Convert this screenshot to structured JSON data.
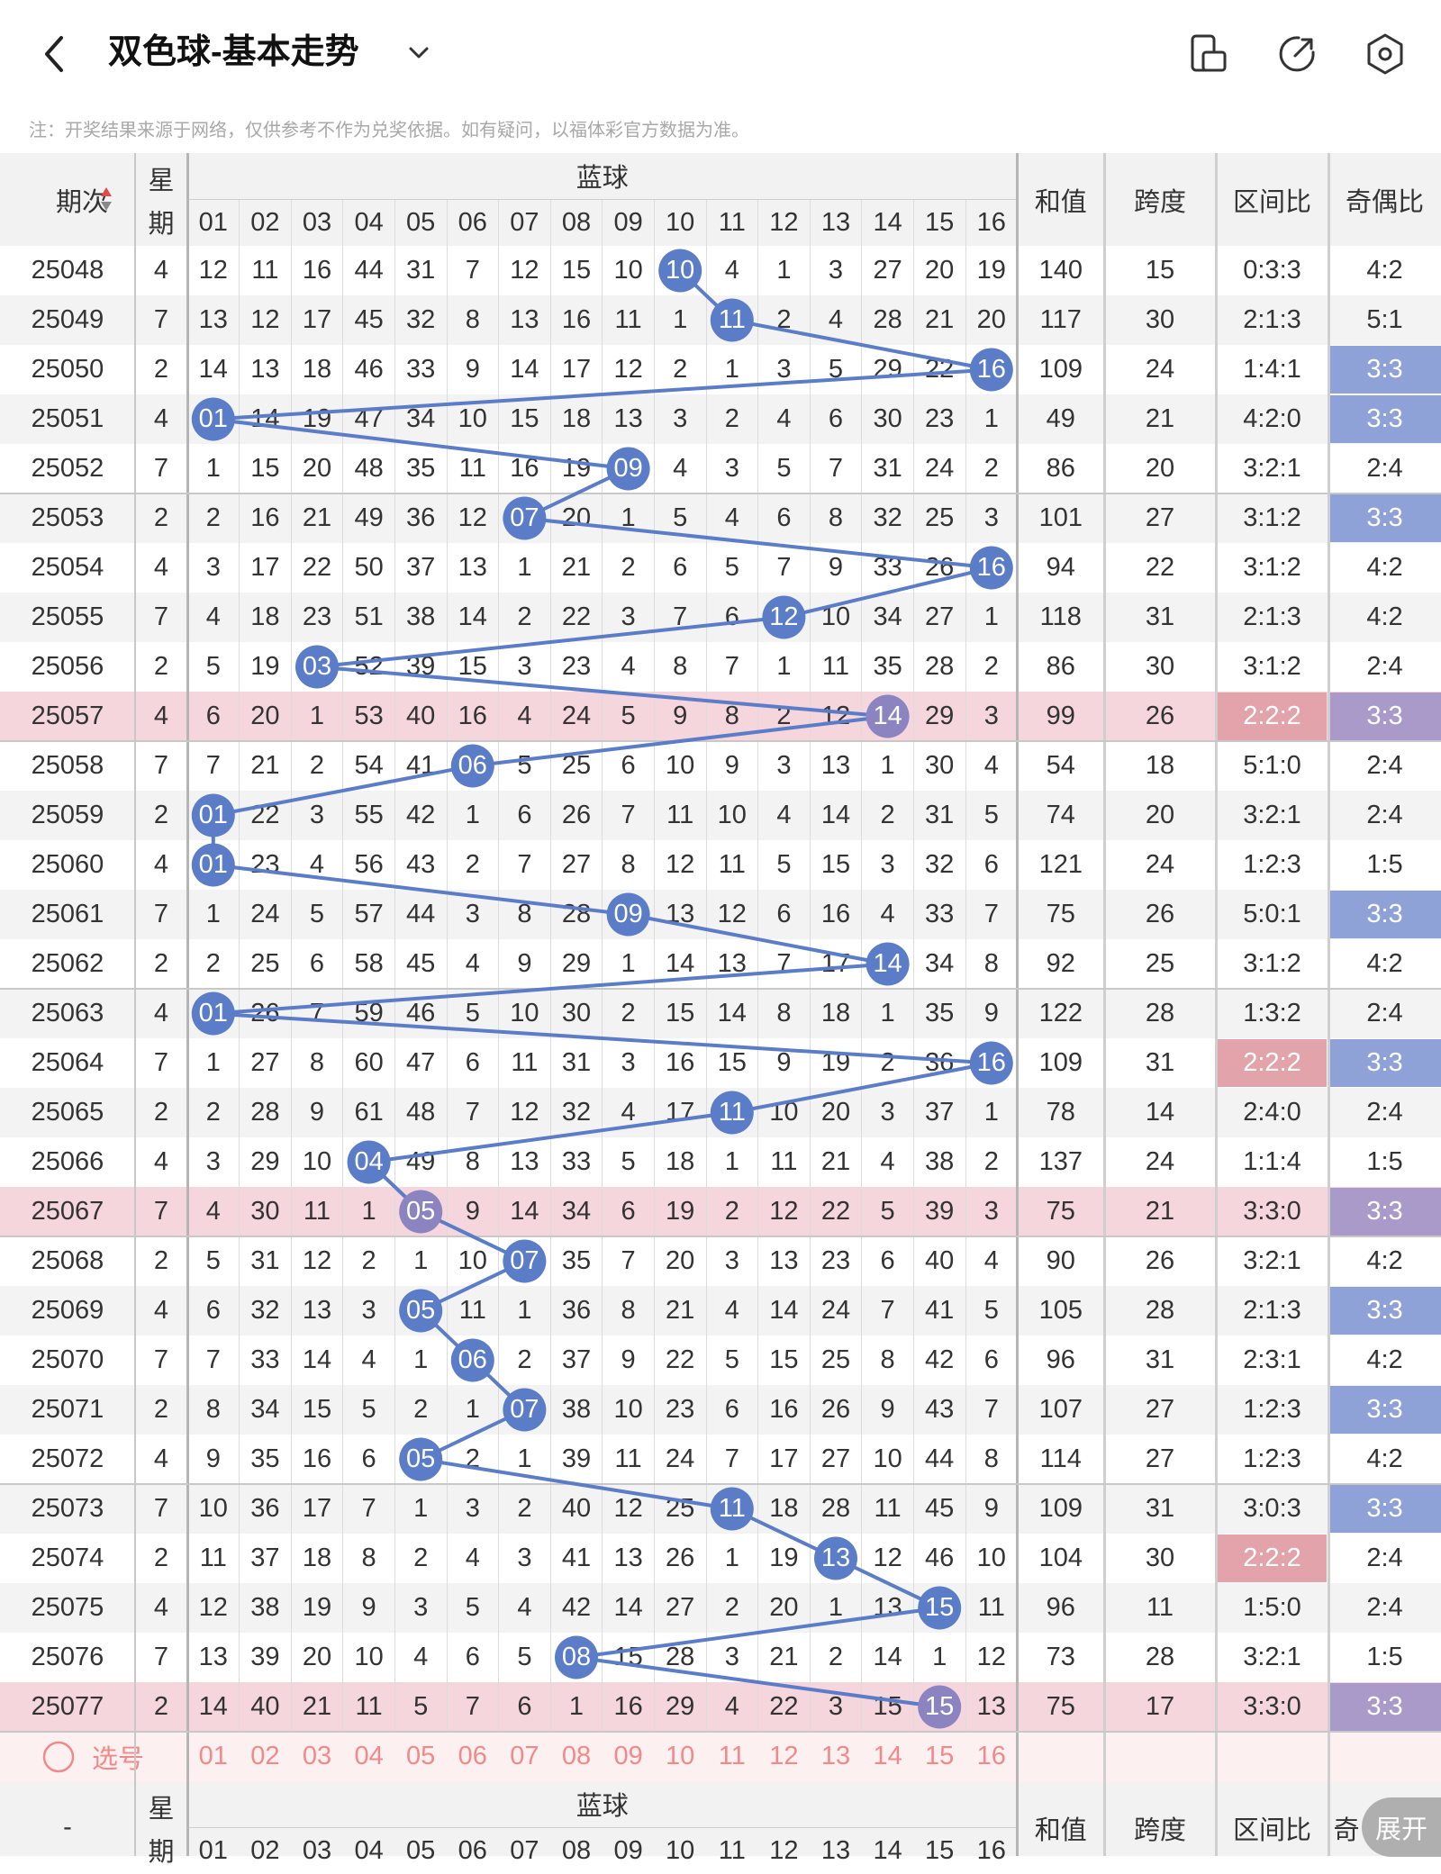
{
  "header": {
    "title": "双色球-基本走势",
    "back_icon": "chevron-left-icon",
    "dropdown_icon": "chevron-down-icon",
    "icons": [
      "phone-rotate-icon",
      "share-icon",
      "settings-hex-icon"
    ]
  },
  "note": "注：开奖结果来源于网络，仅供参考不作为兑奖依据。如有疑问，以福体彩官方数据为准。",
  "table": {
    "headers": {
      "period": "期次",
      "sort_icon": "sort-updown-icon",
      "weekday": "星期",
      "blue_group": "蓝球",
      "sum": "和值",
      "span": "跨度",
      "zone_ratio": "区间比",
      "odd_even": "奇偶比"
    },
    "blue_columns": [
      "01",
      "02",
      "03",
      "04",
      "05",
      "06",
      "07",
      "08",
      "09",
      "10",
      "11",
      "12",
      "13",
      "14",
      "15",
      "16"
    ],
    "rows": [
      {
        "period": "25048",
        "weekday": "4",
        "blue_hit": 10,
        "blue_cells": [
          12,
          11,
          16,
          44,
          31,
          7,
          12,
          15,
          10,
          "10",
          4,
          1,
          3,
          27,
          20,
          19
        ],
        "sum": "140",
        "span": "15",
        "zone": "0:3:3",
        "oe": "4:2"
      },
      {
        "period": "25049",
        "weekday": "7",
        "blue_hit": 11,
        "blue_cells": [
          13,
          12,
          17,
          45,
          32,
          8,
          13,
          16,
          11,
          1,
          "11",
          2,
          4,
          28,
          21,
          20
        ],
        "sum": "117",
        "span": "30",
        "zone": "2:1:3",
        "oe": "5:1"
      },
      {
        "period": "25050",
        "weekday": "2",
        "blue_hit": 16,
        "blue_cells": [
          14,
          13,
          18,
          46,
          33,
          9,
          14,
          17,
          12,
          2,
          1,
          3,
          5,
          29,
          22,
          "16"
        ],
        "sum": "109",
        "span": "24",
        "zone": "1:4:1",
        "oe": "3:3"
      },
      {
        "period": "25051",
        "weekday": "4",
        "blue_hit": 1,
        "blue_cells": [
          "01",
          14,
          19,
          47,
          34,
          10,
          15,
          18,
          13,
          3,
          2,
          4,
          6,
          30,
          23,
          1
        ],
        "sum": "49",
        "span": "21",
        "zone": "4:2:0",
        "oe": "3:3"
      },
      {
        "period": "25052",
        "weekday": "7",
        "blue_hit": 9,
        "blue_cells": [
          1,
          15,
          20,
          48,
          35,
          11,
          16,
          19,
          "09",
          4,
          3,
          5,
          7,
          31,
          24,
          2
        ],
        "sum": "86",
        "span": "20",
        "zone": "3:2:1",
        "oe": "2:4"
      },
      {
        "period": "25053",
        "weekday": "2",
        "blue_hit": 7,
        "blue_cells": [
          2,
          16,
          21,
          49,
          36,
          12,
          "07",
          20,
          1,
          5,
          4,
          6,
          8,
          32,
          25,
          3
        ],
        "sum": "101",
        "span": "27",
        "zone": "3:1:2",
        "oe": "3:3"
      },
      {
        "period": "25054",
        "weekday": "4",
        "blue_hit": 16,
        "blue_cells": [
          3,
          17,
          22,
          50,
          37,
          13,
          1,
          21,
          2,
          6,
          5,
          7,
          9,
          33,
          26,
          "16"
        ],
        "sum": "94",
        "span": "22",
        "zone": "3:1:2",
        "oe": "4:2"
      },
      {
        "period": "25055",
        "weekday": "7",
        "blue_hit": 12,
        "blue_cells": [
          4,
          18,
          23,
          51,
          38,
          14,
          2,
          22,
          3,
          7,
          6,
          "12",
          10,
          34,
          27,
          1
        ],
        "sum": "118",
        "span": "31",
        "zone": "2:1:3",
        "oe": "4:2"
      },
      {
        "period": "25056",
        "weekday": "2",
        "blue_hit": 3,
        "blue_cells": [
          5,
          19,
          "03",
          52,
          39,
          15,
          3,
          23,
          4,
          8,
          7,
          1,
          11,
          35,
          28,
          2
        ],
        "sum": "86",
        "span": "30",
        "zone": "3:1:2",
        "oe": "2:4"
      },
      {
        "period": "25057",
        "weekday": "4",
        "blue_hit": 14,
        "blue_cells": [
          6,
          20,
          1,
          53,
          40,
          16,
          4,
          24,
          5,
          9,
          8,
          2,
          12,
          "14",
          29,
          3
        ],
        "sum": "99",
        "span": "26",
        "zone": "2:2:2",
        "oe": "3:3"
      },
      {
        "period": "25058",
        "weekday": "7",
        "blue_hit": 6,
        "blue_cells": [
          7,
          21,
          2,
          54,
          41,
          "06",
          5,
          25,
          6,
          10,
          9,
          3,
          13,
          1,
          30,
          4
        ],
        "sum": "54",
        "span": "18",
        "zone": "5:1:0",
        "oe": "2:4"
      },
      {
        "period": "25059",
        "weekday": "2",
        "blue_hit": 1,
        "blue_cells": [
          "01",
          22,
          3,
          55,
          42,
          1,
          6,
          26,
          7,
          11,
          10,
          4,
          14,
          2,
          31,
          5
        ],
        "sum": "74",
        "span": "20",
        "zone": "3:2:1",
        "oe": "2:4"
      },
      {
        "period": "25060",
        "weekday": "4",
        "blue_hit": 1,
        "blue_cells": [
          "01",
          23,
          4,
          56,
          43,
          2,
          7,
          27,
          8,
          12,
          11,
          5,
          15,
          3,
          32,
          6
        ],
        "sum": "121",
        "span": "24",
        "zone": "1:2:3",
        "oe": "1:5"
      },
      {
        "period": "25061",
        "weekday": "7",
        "blue_hit": 9,
        "blue_cells": [
          1,
          24,
          5,
          57,
          44,
          3,
          8,
          28,
          "09",
          13,
          12,
          6,
          16,
          4,
          33,
          7
        ],
        "sum": "75",
        "span": "26",
        "zone": "5:0:1",
        "oe": "3:3"
      },
      {
        "period": "25062",
        "weekday": "2",
        "blue_hit": 14,
        "blue_cells": [
          2,
          25,
          6,
          58,
          45,
          4,
          9,
          29,
          1,
          14,
          13,
          7,
          17,
          "14",
          34,
          8
        ],
        "sum": "92",
        "span": "25",
        "zone": "3:1:2",
        "oe": "4:2"
      },
      {
        "period": "25063",
        "weekday": "4",
        "blue_hit": 1,
        "blue_cells": [
          "01",
          26,
          7,
          59,
          46,
          5,
          10,
          30,
          2,
          15,
          14,
          8,
          18,
          1,
          35,
          9
        ],
        "sum": "122",
        "span": "28",
        "zone": "1:3:2",
        "oe": "2:4"
      },
      {
        "period": "25064",
        "weekday": "7",
        "blue_hit": 16,
        "blue_cells": [
          1,
          27,
          8,
          60,
          47,
          6,
          11,
          31,
          3,
          16,
          15,
          9,
          19,
          2,
          36,
          "16"
        ],
        "sum": "109",
        "span": "31",
        "zone": "2:2:2",
        "oe": "3:3"
      },
      {
        "period": "25065",
        "weekday": "2",
        "blue_hit": 11,
        "blue_cells": [
          2,
          28,
          9,
          61,
          48,
          7,
          12,
          32,
          4,
          17,
          "11",
          10,
          20,
          3,
          37,
          1
        ],
        "sum": "78",
        "span": "14",
        "zone": "2:4:0",
        "oe": "2:4"
      },
      {
        "period": "25066",
        "weekday": "4",
        "blue_hit": 4,
        "blue_cells": [
          3,
          29,
          10,
          "04",
          49,
          8,
          13,
          33,
          5,
          18,
          1,
          11,
          21,
          4,
          38,
          2
        ],
        "sum": "137",
        "span": "24",
        "zone": "1:1:4",
        "oe": "1:5"
      },
      {
        "period": "25067",
        "weekday": "7",
        "blue_hit": 5,
        "blue_cells": [
          4,
          30,
          11,
          1,
          "05",
          9,
          14,
          34,
          6,
          19,
          2,
          12,
          22,
          5,
          39,
          3
        ],
        "sum": "75",
        "span": "21",
        "zone": "3:3:0",
        "oe": "3:3"
      },
      {
        "period": "25068",
        "weekday": "2",
        "blue_hit": 7,
        "blue_cells": [
          5,
          31,
          12,
          2,
          1,
          10,
          "07",
          35,
          7,
          20,
          3,
          13,
          23,
          6,
          40,
          4
        ],
        "sum": "90",
        "span": "26",
        "zone": "3:2:1",
        "oe": "4:2"
      },
      {
        "period": "25069",
        "weekday": "4",
        "blue_hit": 5,
        "blue_cells": [
          6,
          32,
          13,
          3,
          "05",
          11,
          1,
          36,
          8,
          21,
          4,
          14,
          24,
          7,
          41,
          5
        ],
        "sum": "105",
        "span": "28",
        "zone": "2:1:3",
        "oe": "3:3"
      },
      {
        "period": "25070",
        "weekday": "7",
        "blue_hit": 6,
        "blue_cells": [
          7,
          33,
          14,
          4,
          1,
          "06",
          2,
          37,
          9,
          22,
          5,
          15,
          25,
          8,
          42,
          6
        ],
        "sum": "96",
        "span": "31",
        "zone": "2:3:1",
        "oe": "4:2"
      },
      {
        "period": "25071",
        "weekday": "2",
        "blue_hit": 7,
        "blue_cells": [
          8,
          34,
          15,
          5,
          2,
          1,
          "07",
          38,
          10,
          23,
          6,
          16,
          26,
          9,
          43,
          7
        ],
        "sum": "107",
        "span": "27",
        "zone": "1:2:3",
        "oe": "3:3"
      },
      {
        "period": "25072",
        "weekday": "4",
        "blue_hit": 5,
        "blue_cells": [
          9,
          35,
          16,
          6,
          "05",
          2,
          1,
          39,
          11,
          24,
          7,
          17,
          27,
          10,
          44,
          8
        ],
        "sum": "114",
        "span": "27",
        "zone": "1:2:3",
        "oe": "4:2"
      },
      {
        "period": "25073",
        "weekday": "7",
        "blue_hit": 11,
        "blue_cells": [
          10,
          36,
          17,
          7,
          1,
          3,
          2,
          40,
          12,
          25,
          "11",
          18,
          28,
          11,
          45,
          9
        ],
        "sum": "109",
        "span": "31",
        "zone": "3:0:3",
        "oe": "3:3"
      },
      {
        "period": "25074",
        "weekday": "2",
        "blue_hit": 13,
        "blue_cells": [
          11,
          37,
          18,
          8,
          2,
          4,
          3,
          41,
          13,
          26,
          1,
          19,
          "13",
          12,
          46,
          10
        ],
        "sum": "104",
        "span": "30",
        "zone": "2:2:2",
        "oe": "2:4"
      },
      {
        "period": "25075",
        "weekday": "4",
        "blue_hit": 15,
        "blue_cells": [
          12,
          38,
          19,
          9,
          3,
          5,
          4,
          42,
          14,
          27,
          2,
          20,
          1,
          13,
          "15",
          11
        ],
        "sum": "96",
        "span": "11",
        "zone": "1:5:0",
        "oe": "2:4"
      },
      {
        "period": "25076",
        "weekday": "7",
        "blue_hit": 8,
        "blue_cells": [
          13,
          39,
          20,
          10,
          4,
          6,
          5,
          "08",
          15,
          28,
          3,
          21,
          2,
          14,
          1,
          12
        ],
        "sum": "73",
        "span": "28",
        "zone": "3:2:1",
        "oe": "1:5"
      },
      {
        "period": "25077",
        "weekday": "2",
        "blue_hit": 15,
        "blue_cells": [
          14,
          40,
          21,
          11,
          5,
          7,
          6,
          1,
          16,
          29,
          4,
          22,
          3,
          15,
          "15",
          13
        ],
        "sum": "75",
        "span": "17",
        "zone": "3:3:0",
        "oe": "3:3"
      }
    ],
    "highlight_rows": [
      "25057",
      "25067",
      "25077"
    ],
    "zone_red_rows": [
      "25057",
      "25064",
      "25074"
    ],
    "oe_blue_rows": [
      "25050",
      "25051",
      "25053",
      "25061",
      "25064",
      "25069",
      "25071",
      "25073"
    ],
    "oe_purple_rows": [
      "25057",
      "25067",
      "25077"
    ],
    "select_row": {
      "label": "选号",
      "circle_icon": "circle-outline-icon"
    },
    "footer_header": {
      "period": "-",
      "weekday": "星期",
      "blue_group": "蓝球",
      "sum": "和值",
      "span": "跨度",
      "zone_ratio": "区间比",
      "odd_even": "奇"
    },
    "expand_button": "展开"
  },
  "colors": {
    "blue_ball": "#5b7cc7",
    "purple_ball": "#8c84c0",
    "line": "#5b7cc7",
    "row_highlight": "#f4d6dc",
    "zone_red": "#e3a3ab",
    "oe_blue": "#8ea2d8",
    "oe_purple": "#a99ac9",
    "select_text": "#f08a8a",
    "select_bg": "#fdf0f0"
  }
}
